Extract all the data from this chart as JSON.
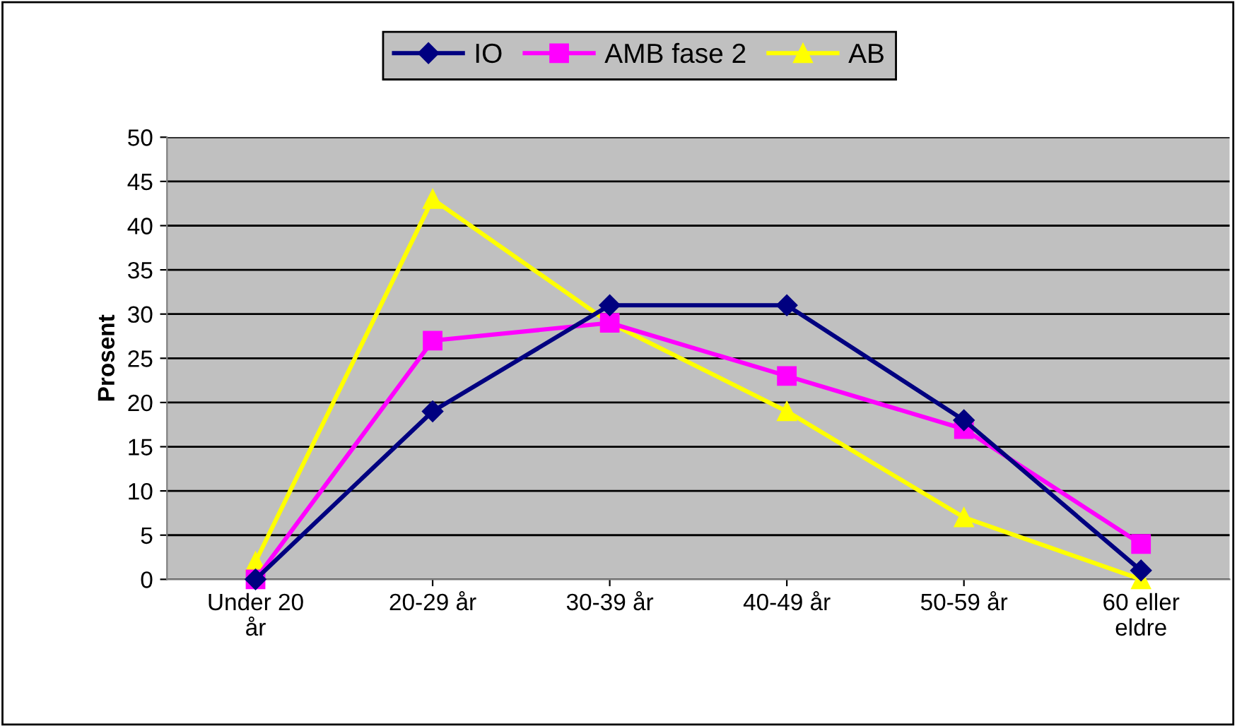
{
  "chart_data": {
    "type": "line",
    "ylabel": "Prosent",
    "categories": [
      "Under 20\når",
      "20-29 år",
      "30-39 år",
      "40-49 år",
      "50-59 år",
      "60 eller\neldre"
    ],
    "series": [
      {
        "name": "IO",
        "color": "#000080",
        "marker": "diamond",
        "values": [
          0,
          19,
          31,
          31,
          18,
          1
        ]
      },
      {
        "name": "AMB fase 2",
        "color": "#ff00ff",
        "marker": "square",
        "values": [
          0,
          27,
          29,
          23,
          17,
          4
        ]
      },
      {
        "name": "AB",
        "color": "#ffff00",
        "marker": "triangle",
        "values": [
          2,
          43,
          29,
          19,
          7,
          0
        ]
      }
    ],
    "ylim": [
      0,
      50
    ],
    "yticks": [
      0,
      5,
      10,
      15,
      20,
      25,
      30,
      35,
      40,
      45,
      50
    ],
    "grid": "y",
    "legend": "top",
    "line_style": "solid"
  }
}
